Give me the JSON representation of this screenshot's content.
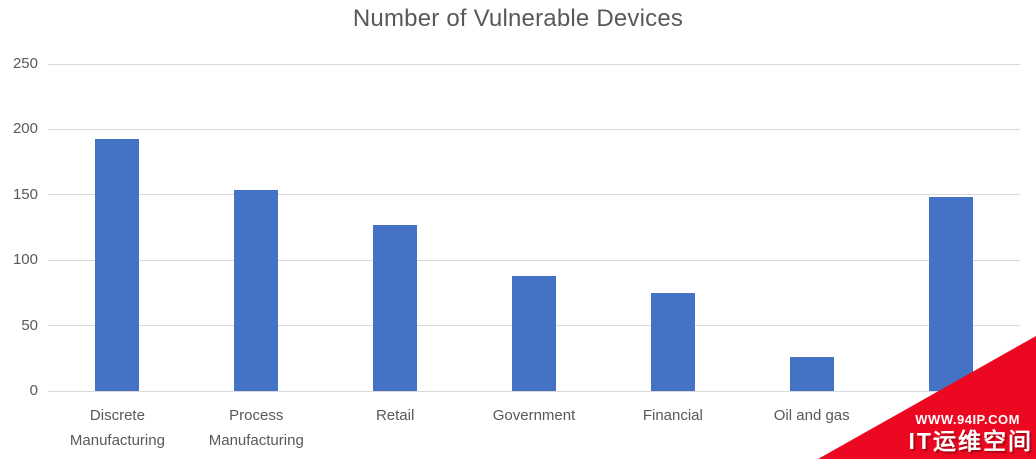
{
  "title": "Number of Vulnerable Devices",
  "chart_data": {
    "type": "bar",
    "title": "Number of Vulnerable Devices",
    "categories": [
      "Discrete Manufacturing",
      "Process Manufacturing",
      "Retail",
      "Government",
      "Financial",
      "Oil and gas",
      ""
    ],
    "values": [
      193,
      154,
      127,
      88,
      75,
      26,
      148
    ],
    "xlabel": "",
    "ylabel": "",
    "ylim": [
      0,
      250
    ],
    "yticks": [
      0,
      50,
      100,
      150,
      200,
      250
    ],
    "grid": true,
    "legend": false,
    "bar_color": "#4472c4"
  },
  "watermark": {
    "line1": "WWW.94IP.COM",
    "line2": "IT运维空间",
    "bg_color": "#ec0820",
    "text_color": "#ffffff"
  },
  "colors": {
    "bar": "#4472c4",
    "grid": "#d9d9d9",
    "axis_text": "#595959",
    "title_text": "#595959",
    "background": "#ffffff"
  }
}
